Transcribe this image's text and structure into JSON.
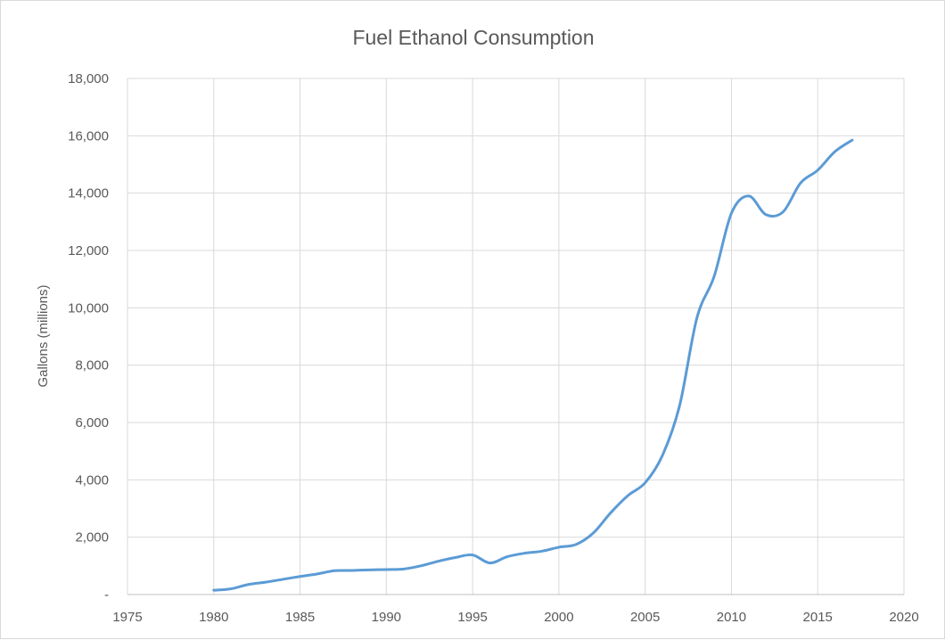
{
  "chart_data": {
    "type": "line",
    "title": "Fuel Ethanol Consumption",
    "xlabel": "",
    "ylabel": "Gallons (millions)",
    "xlim": [
      1975,
      2020
    ],
    "ylim": [
      0,
      18000
    ],
    "x_ticks": [
      "1975",
      "1980",
      "1985",
      "1990",
      "1995",
      "2000",
      "2005",
      "2010",
      "2015",
      "2020"
    ],
    "y_ticks": [
      "-",
      "2,000",
      "4,000",
      "6,000",
      "8,000",
      "10,000",
      "12,000",
      "14,000",
      "16,000",
      "18,000"
    ],
    "grid": "on",
    "legend": "none",
    "series": [
      {
        "color": "#5b9bd5",
        "x": [
          1980,
          1981,
          1982,
          1983,
          1984,
          1985,
          1986,
          1987,
          1988,
          1989,
          1990,
          1991,
          1992,
          1993,
          1994,
          1995,
          1996,
          1997,
          1998,
          1999,
          2000,
          2001,
          2002,
          2003,
          2004,
          2005,
          2006,
          2007,
          2008,
          2009,
          2010,
          2011,
          2012,
          2013,
          2014,
          2015,
          2016,
          2017
        ],
        "values": [
          150,
          200,
          350,
          430,
          530,
          630,
          720,
          830,
          840,
          860,
          870,
          890,
          1000,
          1160,
          1290,
          1380,
          1100,
          1320,
          1440,
          1510,
          1650,
          1750,
          2150,
          2850,
          3450,
          3900,
          4850,
          6600,
          9650,
          11100,
          13300,
          13900,
          13250,
          13350,
          14350,
          14800,
          15450,
          15850
        ]
      }
    ]
  }
}
